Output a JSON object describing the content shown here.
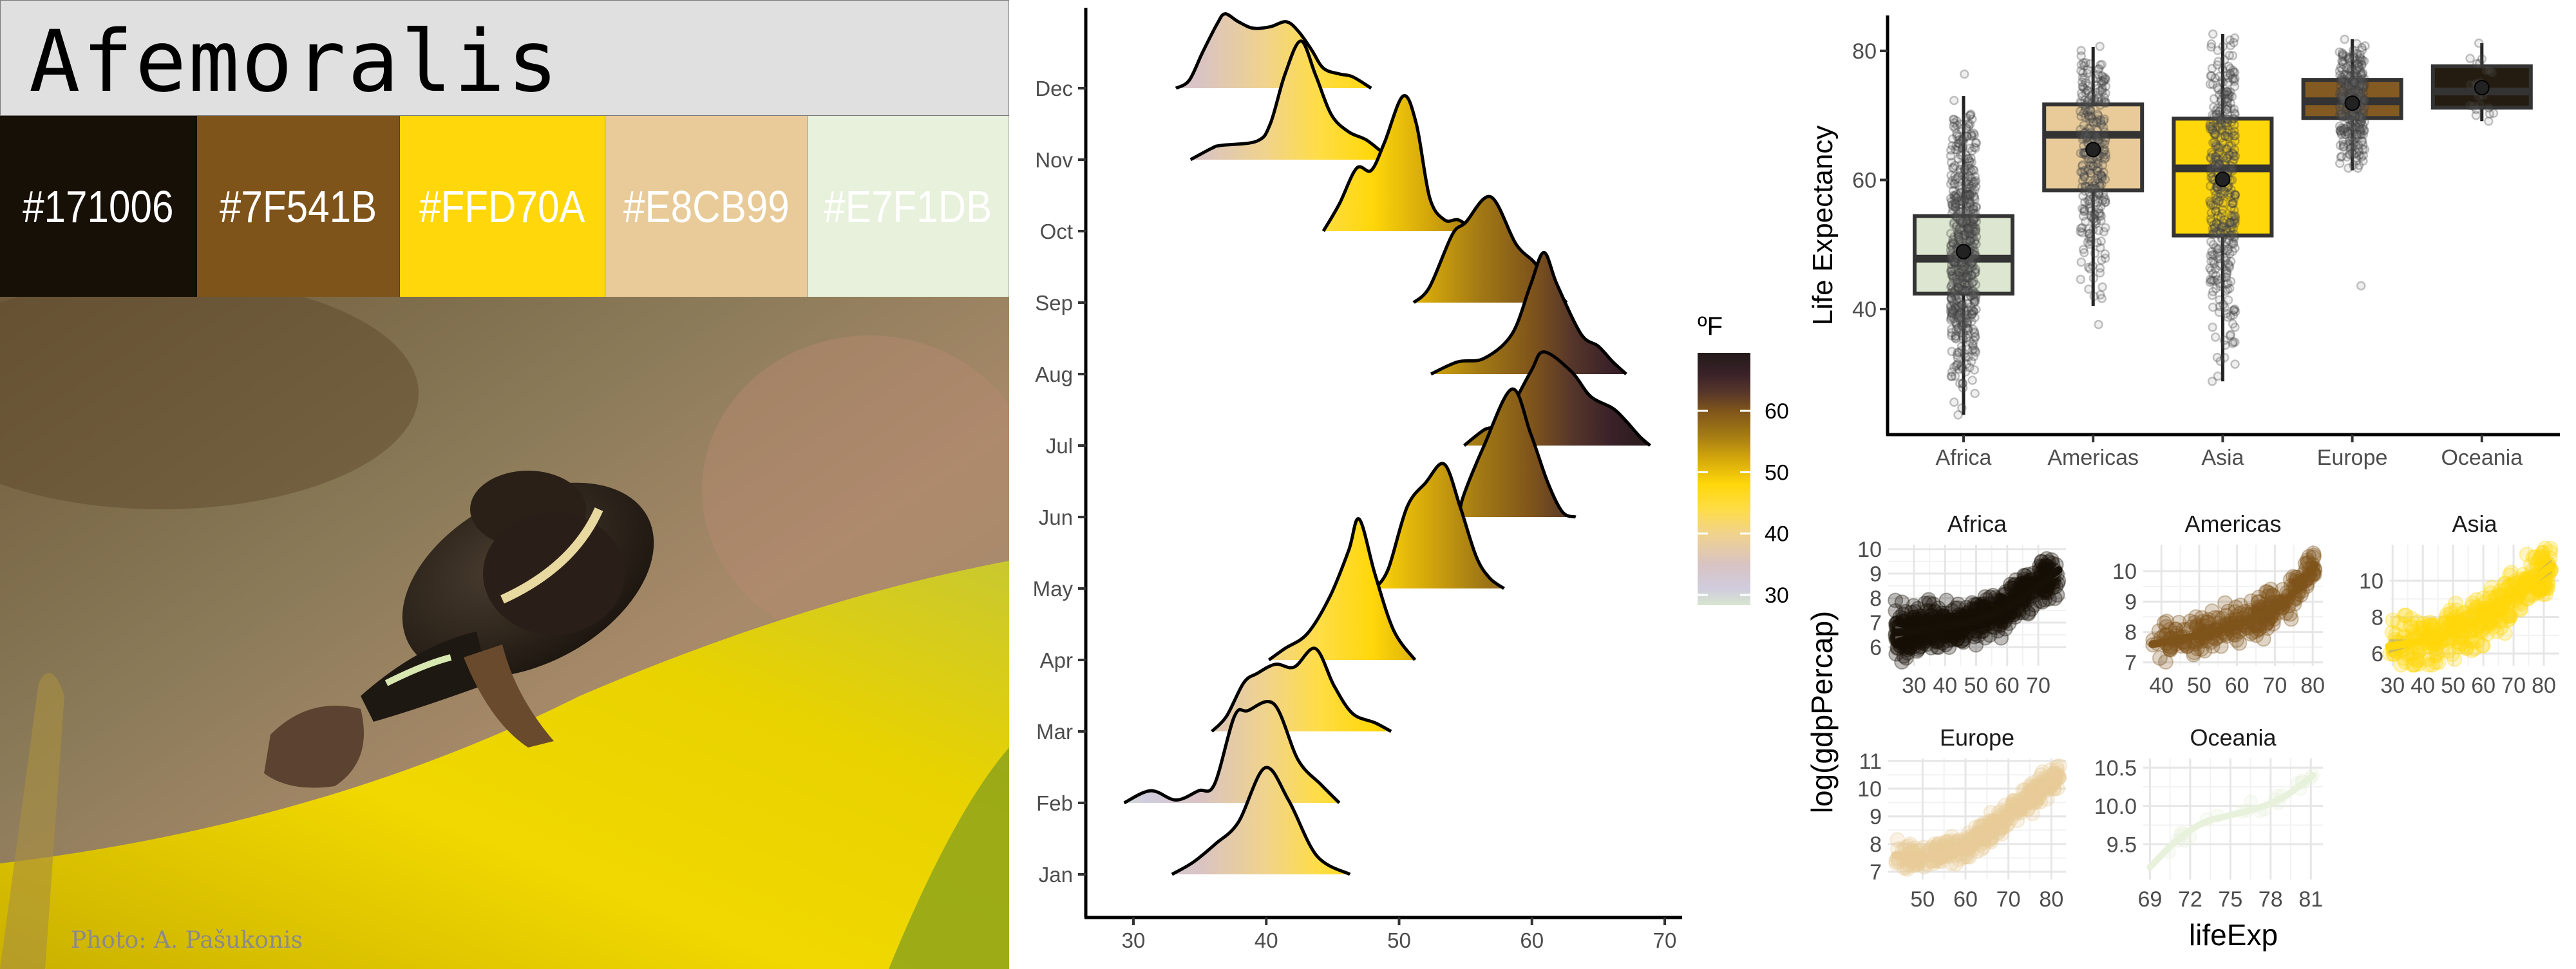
{
  "title": "Afemoralis",
  "palette": [
    {
      "hex": "#171006",
      "label": "#171006"
    },
    {
      "hex": "#7F541B",
      "label": "#7F541B"
    },
    {
      "hex": "#FFD70A",
      "label": "#FFD70A"
    },
    {
      "hex": "#E8CB99",
      "label": "#E8CB99"
    },
    {
      "hex": "#E7F1DB",
      "label": "#E7F1DB"
    }
  ],
  "photo_credit": "Photo: A. Pašukonis",
  "chart_data": [
    {
      "type": "ridgeline",
      "xlabel": "",
      "ylabel": "",
      "xlim": [
        26.5,
        71.5
      ],
      "x_ticks": [
        30,
        40,
        50,
        60,
        70
      ],
      "categories": [
        "Jan",
        "Feb",
        "Mar",
        "Apr",
        "May",
        "Jun",
        "Jul",
        "Aug",
        "Sep",
        "Oct",
        "Nov",
        "Dec"
      ],
      "legend": {
        "title": "ºF",
        "ticks": [
          30,
          40,
          50,
          60
        ],
        "range": [
          28.3,
          69.4
        ],
        "placement": "right"
      },
      "colormap": [
        {
          "value": 28.5,
          "color": "#D6E4D0"
        },
        {
          "value": 31,
          "color": "#D0CCDD"
        },
        {
          "value": 35,
          "color": "#D9C3C3"
        },
        {
          "value": 40,
          "color": "#F0D38C"
        },
        {
          "value": 44,
          "color": "#FFDD45"
        },
        {
          "value": 48,
          "color": "#FFD70A"
        },
        {
          "value": 52,
          "color": "#D6A90B"
        },
        {
          "value": 56,
          "color": "#A37A14"
        },
        {
          "value": 60,
          "color": "#7F541B"
        },
        {
          "value": 63,
          "color": "#56362A"
        },
        {
          "value": 66,
          "color": "#3A2129"
        },
        {
          "value": 69.5,
          "color": "#231A18"
        }
      ],
      "series": [
        {
          "name": "Jan",
          "x": [
            32.9,
            34.5,
            36.2,
            37.9,
            39.9,
            41.7,
            43.8,
            46.3
          ],
          "density": [
            0,
            0.17,
            0.43,
            0.73,
            1.49,
            1.03,
            0.26,
            0
          ]
        },
        {
          "name": "Feb",
          "x": [
            29.3,
            31.3,
            33.2,
            34.9,
            36.1,
            37.6,
            38.6,
            40.6,
            42.4,
            44.1,
            45.5
          ],
          "density": [
            0,
            0.17,
            0.04,
            0.17,
            0.26,
            1.21,
            1.29,
            1.38,
            0.6,
            0.26,
            0
          ]
        },
        {
          "name": "Mar",
          "x": [
            35.9,
            37.0,
            38.3,
            39.3,
            40.7,
            42.1,
            43.7,
            45.1,
            46.5,
            48.2,
            49.4
          ],
          "density": [
            0,
            0.21,
            0.68,
            0.81,
            0.94,
            0.9,
            1.16,
            0.64,
            0.25,
            0.12,
            0
          ]
        },
        {
          "name": "Apr",
          "x": [
            40.2,
            41.4,
            43.1,
            44.8,
            46.2,
            47.0,
            48.2,
            49.6,
            51.2
          ],
          "density": [
            0,
            0.16,
            0.37,
            0.89,
            1.53,
            1.97,
            1.19,
            0.41,
            0
          ]
        },
        {
          "name": "May",
          "x": [
            48.2,
            49.2,
            50.6,
            52.0,
            53.4,
            54.6,
            55.8,
            56.8,
            57.9
          ],
          "density": [
            0,
            0.28,
            1.14,
            1.48,
            1.74,
            1.14,
            0.45,
            0.15,
            0
          ]
        },
        {
          "name": "Jun",
          "x": [
            54.6,
            54.8,
            56.4,
            58.5,
            59.9,
            61.2,
            62.3,
            63.3
          ],
          "density": [
            0,
            0.27,
            1.0,
            1.79,
            1.17,
            0.48,
            0.07,
            0
          ]
        },
        {
          "name": "Jul",
          "x": [
            54.9,
            56.4,
            57.8,
            59.9,
            60.9,
            63.0,
            64.4,
            66.1,
            67.1,
            68.1,
            68.9
          ],
          "density": [
            0,
            0.22,
            0.34,
            1.03,
            1.31,
            1.03,
            0.69,
            0.52,
            0.34,
            0.13,
            0
          ]
        },
        {
          "name": "Aug",
          "x": [
            52.4,
            54.4,
            56.4,
            58.5,
            59.9,
            60.9,
            61.9,
            63.7,
            65.0,
            66.1,
            67.1
          ],
          "density": [
            0,
            0.17,
            0.22,
            0.56,
            1.25,
            1.7,
            1.25,
            0.56,
            0.39,
            0.17,
            0
          ]
        },
        {
          "name": "Sep",
          "x": [
            51.1,
            52.3,
            54.0,
            55.0,
            56.9,
            58.8,
            60.2,
            61.6,
            62.6
          ],
          "density": [
            0,
            0.22,
            0.95,
            1.12,
            1.48,
            0.82,
            0.56,
            0.22,
            0
          ]
        },
        {
          "name": "Oct",
          "x": [
            44.3,
            45.5,
            46.8,
            47.9,
            48.9,
            50.3,
            51.3,
            52.3,
            53.4,
            54.4,
            55.2,
            56.4
          ],
          "density": [
            0,
            0.38,
            0.88,
            0.85,
            1.24,
            1.89,
            1.5,
            0.47,
            0.16,
            0.16,
            0.08,
            0
          ]
        },
        {
          "name": "Nov",
          "x": [
            34.3,
            35.9,
            36.6,
            39.3,
            40.3,
            41.4,
            42.6,
            43.7,
            44.9,
            46.2,
            47.5,
            48.7,
            49.6
          ],
          "density": [
            0,
            0.16,
            0.2,
            0.26,
            0.5,
            1.19,
            1.66,
            1.19,
            0.63,
            0.39,
            0.28,
            0.11,
            0
          ]
        },
        {
          "name": "Dec",
          "x": [
            33.2,
            34.2,
            35.2,
            36.3,
            36.9,
            37.9,
            39.0,
            40.3,
            41.5,
            42.4,
            43.4,
            44.3,
            45.5,
            46.5,
            47.9
          ],
          "density": [
            0,
            0.11,
            0.5,
            0.9,
            1.04,
            0.93,
            0.84,
            0.86,
            0.93,
            0.8,
            0.54,
            0.28,
            0.2,
            0.16,
            0
          ]
        }
      ]
    },
    {
      "type": "box",
      "xlabel": "",
      "ylabel": "Life Expectancy",
      "ylim": [
        19.4,
        85.5
      ],
      "y_ticks": [
        40,
        60,
        80
      ],
      "categories": [
        "Africa",
        "Americas",
        "Asia",
        "Europe",
        "Oceania"
      ],
      "boxes": [
        {
          "name": "Africa",
          "fill": "#DCE6D0",
          "whisker_low": 23.6,
          "q1": 42.4,
          "median": 47.8,
          "q3": 54.4,
          "whisker_high": 73.0,
          "mean": 48.9,
          "min": 23.6,
          "max": 76.4
        },
        {
          "name": "Americas",
          "fill": "#E8CB99",
          "whisker_low": 40.5,
          "q1": 58.4,
          "median": 67.0,
          "q3": 71.7,
          "whisker_high": 80.6,
          "mean": 64.7,
          "min": 37.6,
          "max": 80.7
        },
        {
          "name": "Asia",
          "fill": "#FFD70A",
          "whisker_low": 28.8,
          "q1": 51.4,
          "median": 61.8,
          "q3": 69.5,
          "whisker_high": 82.6,
          "mean": 60.1,
          "min": 28.8,
          "max": 82.6
        },
        {
          "name": "Europe",
          "fill": "#835A22",
          "whisker_low": 61.5,
          "q1": 69.6,
          "median": 72.2,
          "q3": 75.5,
          "whisker_high": 81.8,
          "mean": 71.9,
          "min": 43.6,
          "max": 81.8
        },
        {
          "name": "Oceania",
          "fill": "#241C10",
          "whisker_low": 69.1,
          "q1": 71.2,
          "median": 73.7,
          "q3": 77.6,
          "whisker_high": 81.2,
          "mean": 74.3,
          "min": 69.1,
          "max": 81.2
        }
      ]
    },
    {
      "type": "scatter-facets",
      "xlabel": "lifeExp",
      "ylabel": "log(gdpPercap)",
      "panels": [
        {
          "title": "Africa",
          "color": "#171006",
          "xlim": [
            21.7,
            78.9
          ],
          "ylim": [
            5.24,
            10.18
          ],
          "x_ticks": [
            30,
            40,
            50,
            60,
            70
          ],
          "y_ticks": [
            6,
            7,
            8,
            9,
            10
          ],
          "y_tick_labels": [
            "6",
            "7",
            "8",
            "9",
            "10"
          ],
          "smooth": {
            "x": [
              24,
              30,
              40,
              50,
              60,
              70,
              76.5
            ],
            "y": [
              6.6,
              6.65,
              6.85,
              7.1,
              7.6,
              8.5,
              9.15
            ]
          },
          "spread": 0.75
        },
        {
          "title": "Americas",
          "color": "#7F541B",
          "xlim": [
            35.2,
            82.7
          ],
          "ylim": [
            6.89,
            10.87
          ],
          "x_ticks": [
            40,
            50,
            60,
            70,
            80
          ],
          "y_ticks": [
            7,
            8,
            9,
            10
          ],
          "y_tick_labels": [
            "7",
            "8",
            "9",
            "10"
          ],
          "smooth": {
            "x": [
              37.6,
              40,
              50,
              60,
              70,
              75,
              80.6
            ],
            "y": [
              7.6,
              7.65,
              7.9,
              8.25,
              8.8,
              9.3,
              10.2
            ]
          },
          "spread": 0.5
        },
        {
          "title": "Asia",
          "color": "#FFD70A",
          "xlim": [
            29.1,
            85.1
          ],
          "ylim": [
            5.33,
            11.98
          ],
          "x_ticks": [
            30,
            40,
            50,
            60,
            70,
            80
          ],
          "y_ticks": [
            6,
            8,
            10
          ],
          "y_tick_labels": [
            "6",
            "8",
            "10"
          ],
          "smooth": {
            "x": [
              28.8,
              40,
              50,
              60,
              70,
              82.6
            ],
            "y": [
              6.4,
              6.7,
              7.2,
              8.0,
              9.2,
              10.8
            ]
          },
          "spread": 1.1
        },
        {
          "title": "Europe",
          "color": "#E8CB99",
          "xlim": [
            42.0,
            83.4
          ],
          "ylim": [
            6.72,
            11.09
          ],
          "x_ticks": [
            50,
            60,
            70,
            80
          ],
          "y_ticks": [
            7,
            8,
            9,
            10,
            11
          ],
          "y_tick_labels": [
            "7",
            "8",
            "9",
            "10",
            "11"
          ],
          "smooth": {
            "x": [
              43.6,
              50,
              60,
              70,
              80,
              82
            ],
            "y": [
              7.6,
              7.5,
              7.9,
              9.0,
              10.3,
              10.5
            ]
          },
          "spread": 0.4
        },
        {
          "title": "Oceania",
          "color": "#E7F1DB",
          "xlim": [
            68.5,
            81.9
          ],
          "ylim": [
            9.04,
            10.62
          ],
          "x_ticks": [
            69,
            72,
            75,
            78,
            81
          ],
          "y_ticks": [
            9.5,
            10.0,
            10.5
          ],
          "y_tick_labels": [
            "9.5",
            "10.0",
            "10.5"
          ],
          "smooth": {
            "x": [
              69,
              71,
              73,
              75,
              77,
              79,
              81.2
            ],
            "y": [
              9.2,
              9.55,
              9.78,
              9.88,
              9.97,
              10.12,
              10.4
            ]
          },
          "spread": 0.08
        }
      ]
    }
  ]
}
